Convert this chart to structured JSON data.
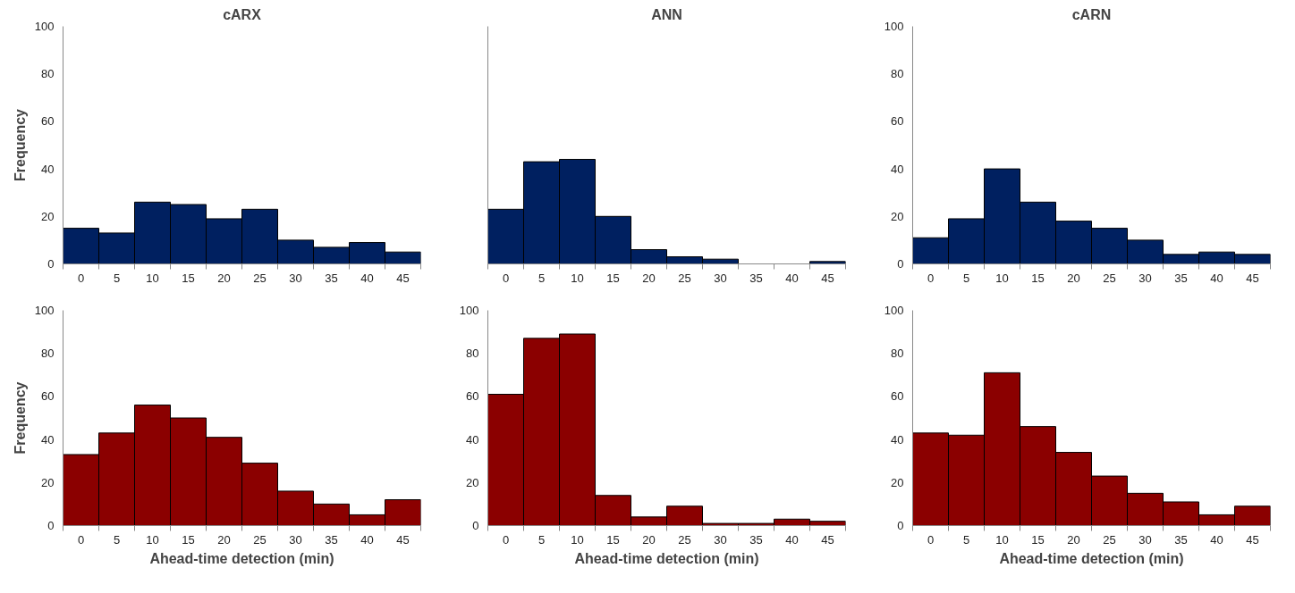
{
  "chart_data": [
    {
      "type": "bar",
      "title": "cARX",
      "ylabel": "Frequency",
      "categories": [
        "0",
        "5",
        "10",
        "15",
        "20",
        "25",
        "30",
        "35",
        "40",
        "45"
      ],
      "values": [
        15,
        13,
        26,
        25,
        19,
        23,
        10,
        7,
        9,
        5
      ],
      "color": "#002060",
      "ylim": [
        0,
        100
      ],
      "yticks": [
        0,
        20,
        40,
        60,
        80,
        100
      ],
      "grid": false
    },
    {
      "type": "bar",
      "title": "ANN",
      "categories": [
        "0",
        "5",
        "10",
        "15",
        "20",
        "25",
        "30",
        "35",
        "40",
        "45"
      ],
      "values": [
        23,
        43,
        44,
        20,
        6,
        3,
        2,
        0,
        0,
        1
      ],
      "color": "#002060",
      "ylim": [
        0,
        100
      ],
      "yticks": [
        0,
        20,
        40,
        60,
        80,
        100
      ],
      "grid": false,
      "tick_labels": "x"
    },
    {
      "type": "bar",
      "title": "cARN",
      "categories": [
        "0",
        "5",
        "10",
        "15",
        "20",
        "25",
        "30",
        "35",
        "40",
        "45"
      ],
      "values": [
        11,
        19,
        40,
        26,
        18,
        15,
        10,
        4,
        5,
        4
      ],
      "color": "#002060",
      "ylim": [
        0,
        100
      ],
      "yticks": [
        0,
        20,
        40,
        60,
        80,
        100
      ],
      "grid": false
    },
    {
      "type": "bar",
      "xlabel": "Ahead-time detection (min)",
      "ylabel": "Frequency",
      "categories": [
        "0",
        "5",
        "10",
        "15",
        "20",
        "25",
        "30",
        "35",
        "40",
        "45"
      ],
      "values": [
        33,
        43,
        56,
        50,
        41,
        29,
        16,
        10,
        5,
        12
      ],
      "color": "#8b0000",
      "ylim": [
        0,
        100
      ],
      "yticks": [
        0,
        20,
        40,
        60,
        80,
        100
      ],
      "grid": false
    },
    {
      "type": "bar",
      "xlabel": "Ahead-time detection (min)",
      "categories": [
        "0",
        "5",
        "10",
        "15",
        "20",
        "25",
        "30",
        "35",
        "40",
        "45"
      ],
      "values": [
        61,
        87,
        89,
        14,
        4,
        9,
        1,
        1,
        3,
        2
      ],
      "color": "#8b0000",
      "ylim": [
        0,
        100
      ],
      "yticks": [
        0,
        20,
        40,
        60,
        80,
        100
      ],
      "grid": false
    },
    {
      "type": "bar",
      "xlabel": "Ahead-time detection (min)",
      "categories": [
        "0",
        "5",
        "10",
        "15",
        "20",
        "25",
        "30",
        "35",
        "40",
        "45"
      ],
      "values": [
        43,
        42,
        71,
        46,
        34,
        23,
        15,
        11,
        5,
        9
      ],
      "color": "#8b0000",
      "ylim": [
        0,
        100
      ],
      "yticks": [
        0,
        20,
        40,
        60,
        80,
        100
      ],
      "grid": false
    }
  ]
}
